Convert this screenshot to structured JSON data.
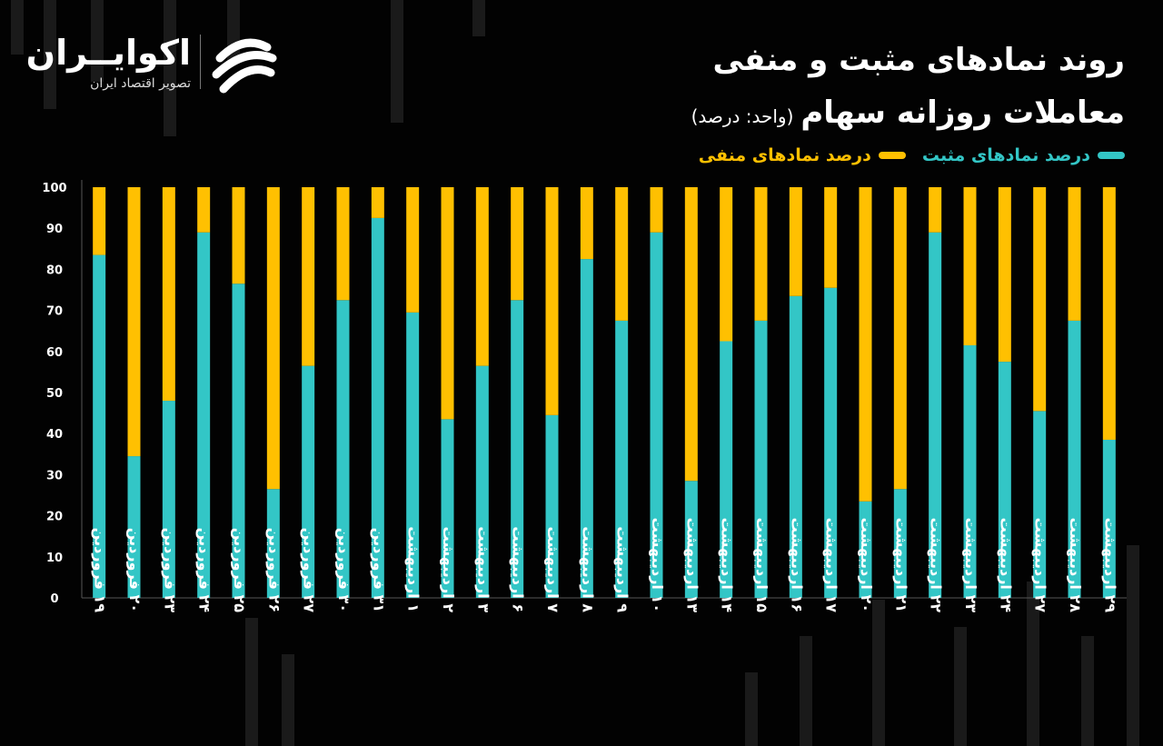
{
  "header": {
    "title_line1": "روند نمادهای مثبت و منفی",
    "title_line2": "معاملات روزانه سهام",
    "unit": "(واحد: درصد)"
  },
  "brand": {
    "name": "اکوایــران",
    "tagline": "تصویر اقتصاد ایران"
  },
  "legend": {
    "positive_label": "درصد نمادهای مثبت",
    "negative_label": "درصد نمادهای منفی"
  },
  "colors": {
    "positive": "#33c6c6",
    "negative": "#ffc001",
    "background": "#020202"
  },
  "chart_data": {
    "type": "bar",
    "stacked": true,
    "ylim": [
      0,
      100
    ],
    "yticks": [
      "0",
      "10",
      "20",
      "30",
      "40",
      "50",
      "60",
      "70",
      "80",
      "90",
      "100"
    ],
    "categories": [
      "۱۹ فروردین",
      "۲۰ فروردین",
      "۲۳ فروردین",
      "۲۴ فروردین",
      "۲۵ فروردین",
      "۲۶ فروردین",
      "۲۷ فروردین",
      "۳۰ فروردین",
      "۳۱ فروردین",
      "۱ اردیبهشت",
      "۲ اردیبهشت",
      "۳ اردیبهشت",
      "۶ اردیبهشت",
      "۷ اردیبهشت",
      "۸ اردیبهشت",
      "۹ اردیبهشت",
      "۱۰ اردیبهشت",
      "۱۳ اردیبهشت",
      "۱۴ اردیبهشت",
      "۱۵ اردیبهشت",
      "۱۶ اردیبهشت",
      "۱۷ اردیبهشت",
      "۲۰ اردیبهشت",
      "۲۱ اردیبهشت",
      "۲۲ اردیبهشت",
      "۲۳ اردیبهشت",
      "۲۴ اردیبهشت",
      "۲۷ اردیبهشت",
      "۲۸ اردیبهشت",
      "۲۹ اردیبهشت"
    ],
    "series": [
      {
        "name": "درصد نمادهای مثبت",
        "values": [
          83.5,
          34.5,
          48,
          89,
          76.5,
          26.5,
          56.5,
          72.5,
          92.5,
          69.5,
          43.5,
          56.5,
          72.5,
          44.5,
          82.5,
          67.5,
          89,
          28.5,
          62.5,
          67.5,
          73.5,
          75.5,
          23.5,
          26.5,
          89,
          61.5,
          57.5,
          45.5,
          67.5,
          38.5
        ]
      },
      {
        "name": "درصد نمادهای منفی",
        "values": [
          16.5,
          65.5,
          52,
          11,
          23.5,
          73.5,
          43.5,
          27.5,
          7.5,
          30.5,
          56.5,
          43.5,
          27.5,
          55.5,
          17.5,
          32.5,
          11,
          71.5,
          37.5,
          32.5,
          26.5,
          24.5,
          76.5,
          73.5,
          11,
          38.5,
          42.5,
          54.5,
          32.5,
          61.5
        ]
      }
    ]
  }
}
